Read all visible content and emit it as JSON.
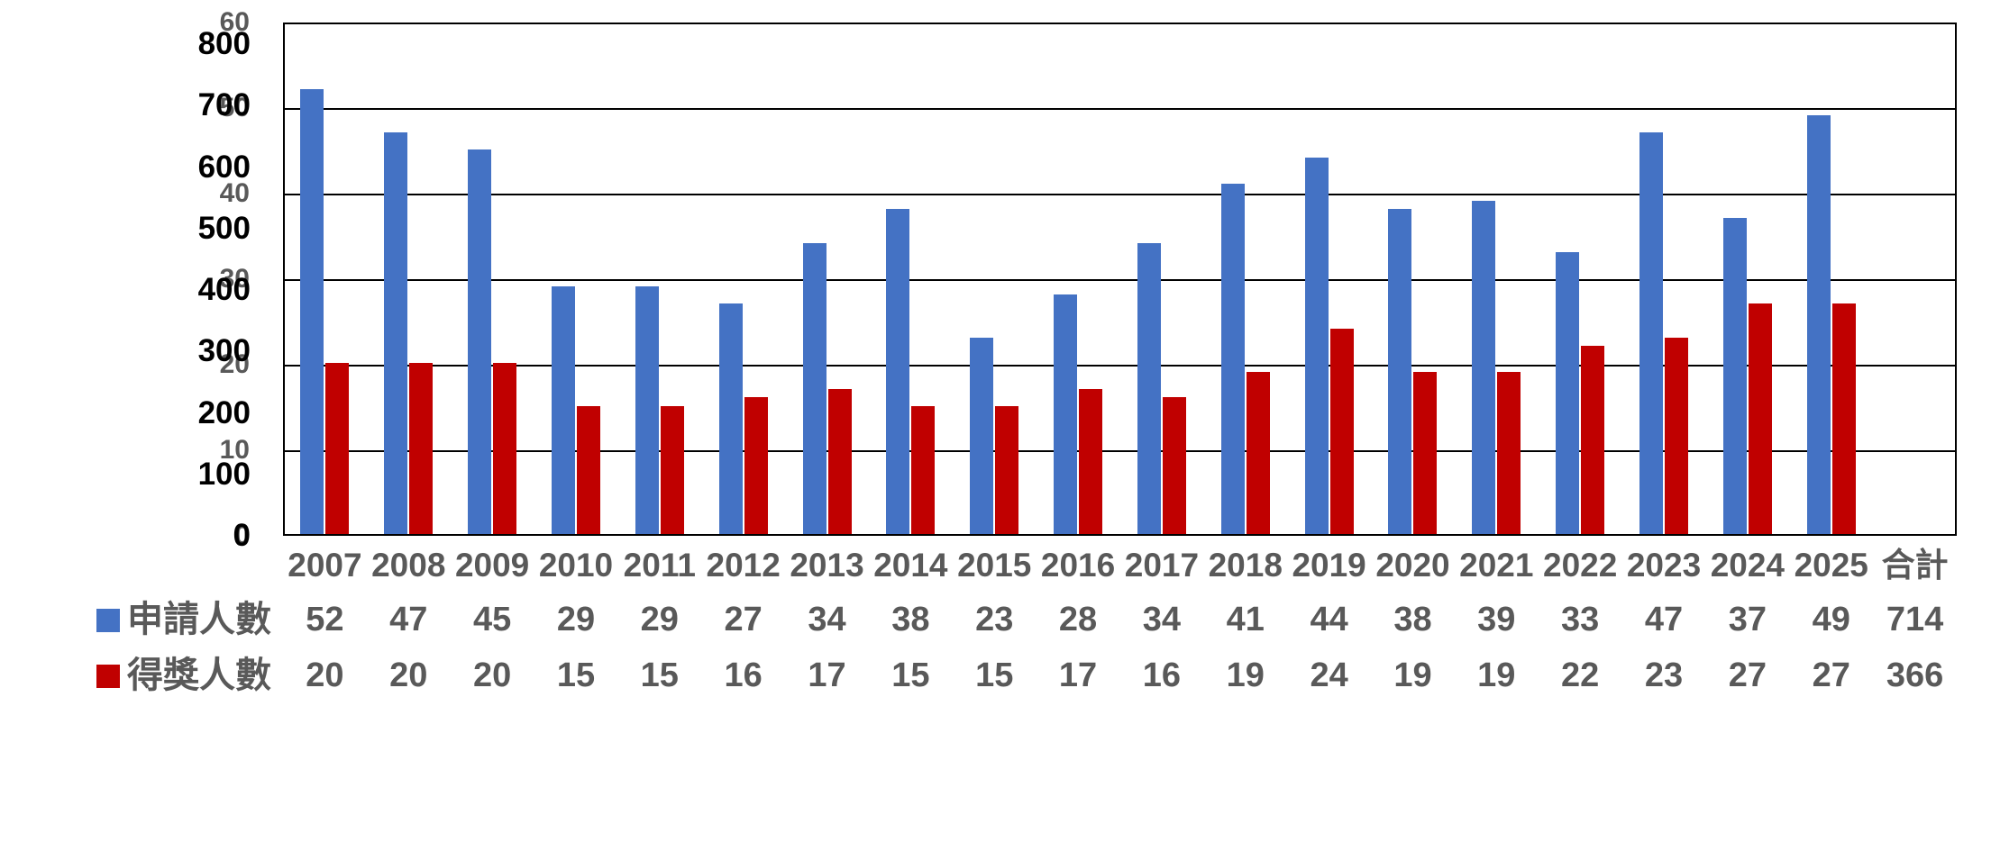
{
  "chart_data": {
    "type": "bar",
    "title": "",
    "categories": [
      "2007",
      "2008",
      "2009",
      "2010",
      "2011",
      "2012",
      "2013",
      "2014",
      "2015",
      "2016",
      "2017",
      "2018",
      "2019",
      "2020",
      "2021",
      "2022",
      "2023",
      "2024",
      "2025"
    ],
    "total_label": "合計",
    "series": [
      {
        "key": "applicants",
        "name": "申請人數",
        "color": "#4472C4",
        "values": [
          52,
          47,
          45,
          29,
          29,
          27,
          34,
          38,
          23,
          28,
          34,
          41,
          44,
          38,
          39,
          33,
          47,
          37,
          49
        ],
        "total": 714
      },
      {
        "key": "awardees",
        "name": "得獎人數",
        "color": "#C00000",
        "values": [
          20,
          20,
          20,
          15,
          15,
          16,
          17,
          15,
          15,
          17,
          16,
          19,
          24,
          19,
          19,
          22,
          23,
          27,
          27
        ],
        "total": 366
      }
    ],
    "axes": {
      "primary_left": {
        "ticks": [
          800,
          700,
          600,
          500,
          400,
          300,
          200,
          100,
          0
        ],
        "range": [
          0,
          800
        ],
        "color": "#000000"
      },
      "secondary_left": {
        "ticks": [
          60,
          50,
          40,
          30,
          20,
          10,
          0
        ],
        "range": [
          0,
          60
        ],
        "color": "#595959"
      }
    },
    "bars_scale_axis": "secondary_left",
    "grid": true,
    "gridline_color": "#000000",
    "plot_background": "#ffffff",
    "page_background": "#ffffff",
    "category_label_color": "#595959",
    "table_text_color": "#595959",
    "legend_position": "table-left"
  }
}
